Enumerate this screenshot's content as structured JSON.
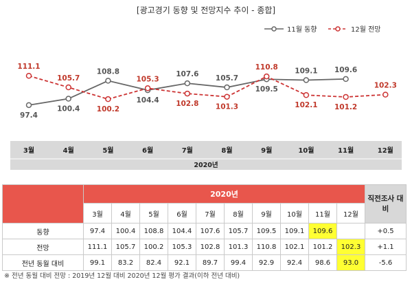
{
  "title": "[광고경기 동향 및 전망지수 추이 - 종합]",
  "chart_data": {
    "type": "line",
    "categories": [
      "3월",
      "4월",
      "5월",
      "6월",
      "7월",
      "8월",
      "9월",
      "10월",
      "11월",
      "12월"
    ],
    "xlabel_group": "2020년",
    "series": [
      {
        "name": "11월 동향",
        "color": "#666666",
        "values": [
          97.4,
          100.4,
          108.8,
          104.4,
          107.6,
          105.7,
          109.5,
          109.1,
          109.6,
          null
        ]
      },
      {
        "name": "12월 전망",
        "color": "#cc3333",
        "values": [
          111.1,
          105.7,
          100.2,
          105.3,
          102.8,
          101.3,
          110.8,
          102.1,
          101.2,
          102.3
        ]
      }
    ],
    "ylim": [
      80,
      125
    ]
  },
  "table": {
    "year_header": "2020년",
    "months": [
      "3월",
      "4월",
      "5월",
      "6월",
      "7월",
      "8월",
      "9월",
      "10월",
      "11월",
      "12월"
    ],
    "right_header": "직전조사 대비",
    "rows": [
      {
        "label": "동향",
        "values": [
          "97.4",
          "100.4",
          "108.8",
          "104.4",
          "107.6",
          "105.7",
          "109.5",
          "109.1",
          "109.6",
          ""
        ],
        "diff": "+0.5",
        "highlight": 8
      },
      {
        "label": "전망",
        "values": [
          "111.1",
          "105.7",
          "100.2",
          "105.3",
          "102.8",
          "101.3",
          "110.8",
          "102.1",
          "101.2",
          "102.3"
        ],
        "diff": "+1.1",
        "highlight": 9
      },
      {
        "label": "전년 동월 대비",
        "values": [
          "99.1",
          "83.2",
          "82.4",
          "92.1",
          "89.7",
          "99.4",
          "92.9",
          "92.4",
          "98.6",
          "93.0"
        ],
        "diff": "-5.6",
        "highlight": 9
      }
    ]
  },
  "footnote": "※ 전년 동월 대비 전망 : 2019년 12월 대비 2020년 12월 평가 결과(이하 전년 대비)"
}
